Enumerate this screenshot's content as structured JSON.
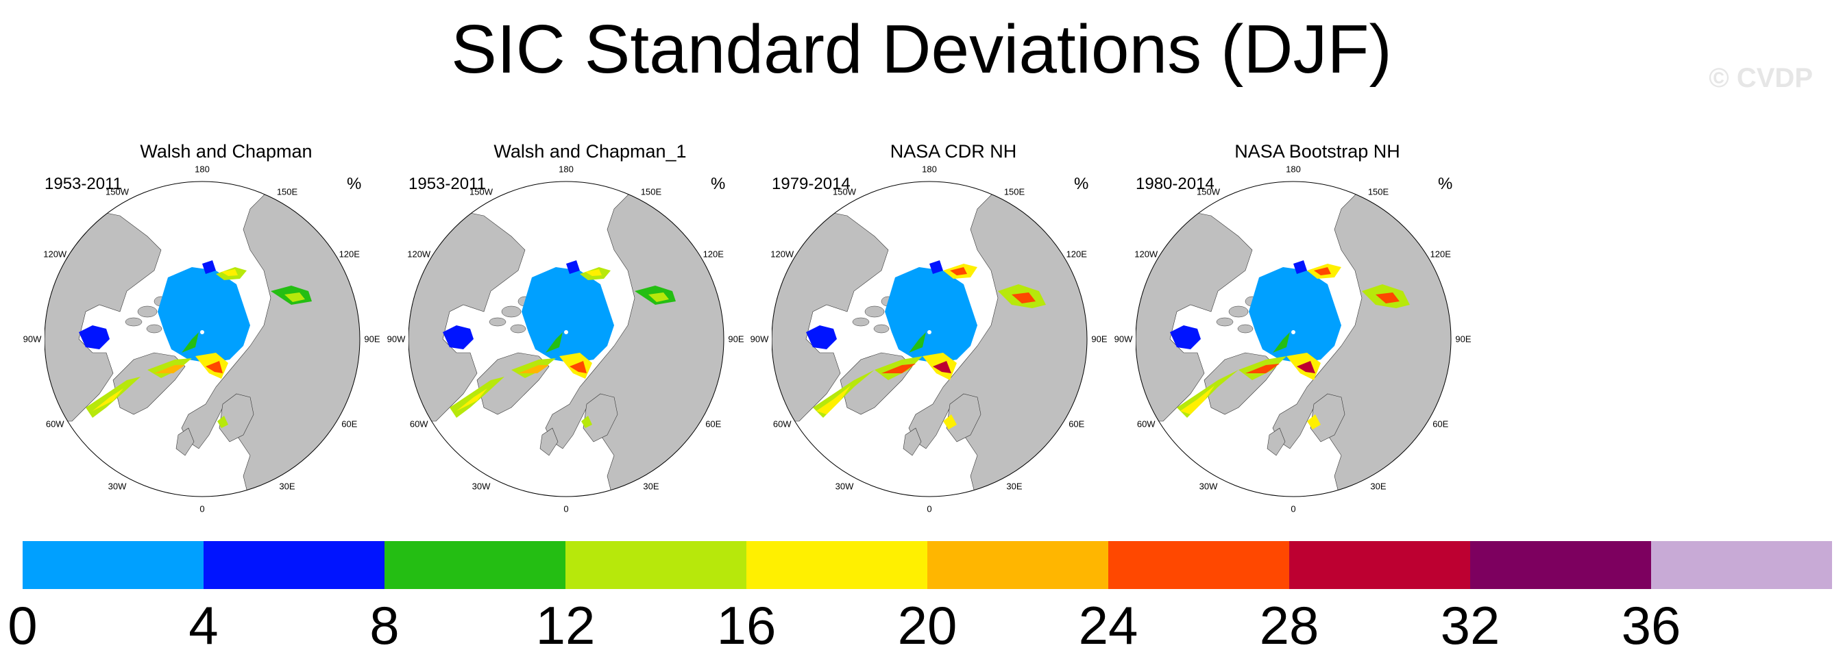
{
  "title": "SIC Standard Deviations (DJF)",
  "watermark": "© CVDP",
  "panels": [
    {
      "title": "Walsh and Chapman",
      "period": "1953-2011",
      "units": "%"
    },
    {
      "title": "Walsh and Chapman_1",
      "period": "1953-2011",
      "units": "%"
    },
    {
      "title": "NASA CDR NH",
      "period": "1979-2014",
      "units": "%"
    },
    {
      "title": "NASA Bootstrap NH",
      "period": "1980-2014",
      "units": "%"
    }
  ],
  "longitude_labels": [
    "180",
    "150E",
    "120E",
    "90E",
    "60E",
    "30E",
    "0",
    "30W",
    "60W",
    "90W",
    "120W",
    "150W"
  ],
  "colorbar": {
    "colors": [
      "#00a0ff",
      "#0014ff",
      "#24be13",
      "#b7e80b",
      "#fff000",
      "#ffb600",
      "#ff4800",
      "#bd0031",
      "#7d005f",
      "#c8aad6"
    ],
    "labels": [
      "0",
      "4",
      "8",
      "12",
      "16",
      "20",
      "24",
      "28",
      "32",
      "36"
    ]
  },
  "land_color": "#bfbfbf"
}
